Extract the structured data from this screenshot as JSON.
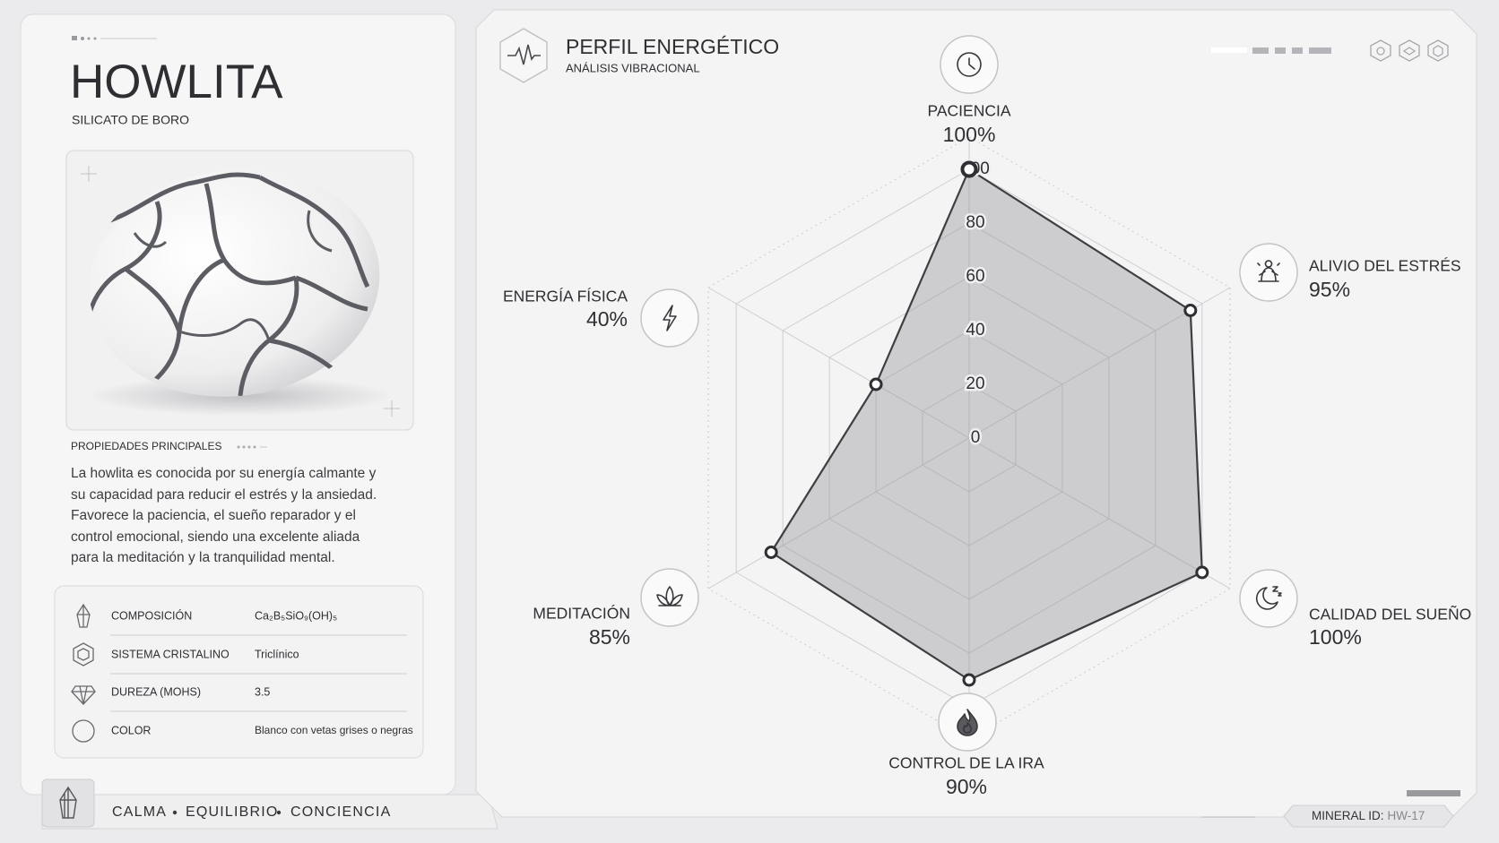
{
  "card": {
    "title": "HOWLITA",
    "subtitle": "SILICATO DE BORO",
    "section_label": "PROPIEDADES PRINCIPALES",
    "description": "La howlita es conocida por su energía calmante y su capacidad para reducir el estrés y la ansiedad. Favorece la paciencia, el sueño reparador y el control emocional, siendo una excelente aliada para la meditación y la tranquilidad mental.",
    "properties": [
      {
        "label": "COMPOSICIÓN",
        "value": "Ca₂B₅SiO₉(OH)₅"
      },
      {
        "label": "SISTEMA CRISTALINO",
        "value": "Triclínico"
      },
      {
        "label": "DUREZA (MOHS)",
        "value": "3.5"
      },
      {
        "label": "COLOR",
        "value": "Blanco con vetas grises o negras"
      }
    ]
  },
  "tags": [
    "CALMA",
    "EQUILIBRIO",
    "CONCIENCIA"
  ],
  "chart_data": {
    "type": "radar",
    "title": "PERFIL ENERGÉTICO",
    "subtitle": "ANÁLISIS VIBRACIONAL",
    "categories": [
      "PACIENCIA",
      "ALIVIO DEL ESTRÉS",
      "CALIDAD DEL SUEÑO",
      "CONTROL DE LA IRA",
      "MEDITACIÓN",
      "ENERGÍA FÍSICA"
    ],
    "values": [
      100,
      95,
      100,
      90,
      85,
      40
    ],
    "value_labels": [
      "100%",
      "95%",
      "100%",
      "90%",
      "85%",
      "40%"
    ],
    "rlim": [
      0,
      100
    ],
    "rticks": [
      0,
      20,
      40,
      60,
      80,
      100
    ],
    "color": "#8f8f93",
    "grid": true
  },
  "footer": {
    "id_label": "MINERAL ID:",
    "id_value": "HW-17"
  }
}
